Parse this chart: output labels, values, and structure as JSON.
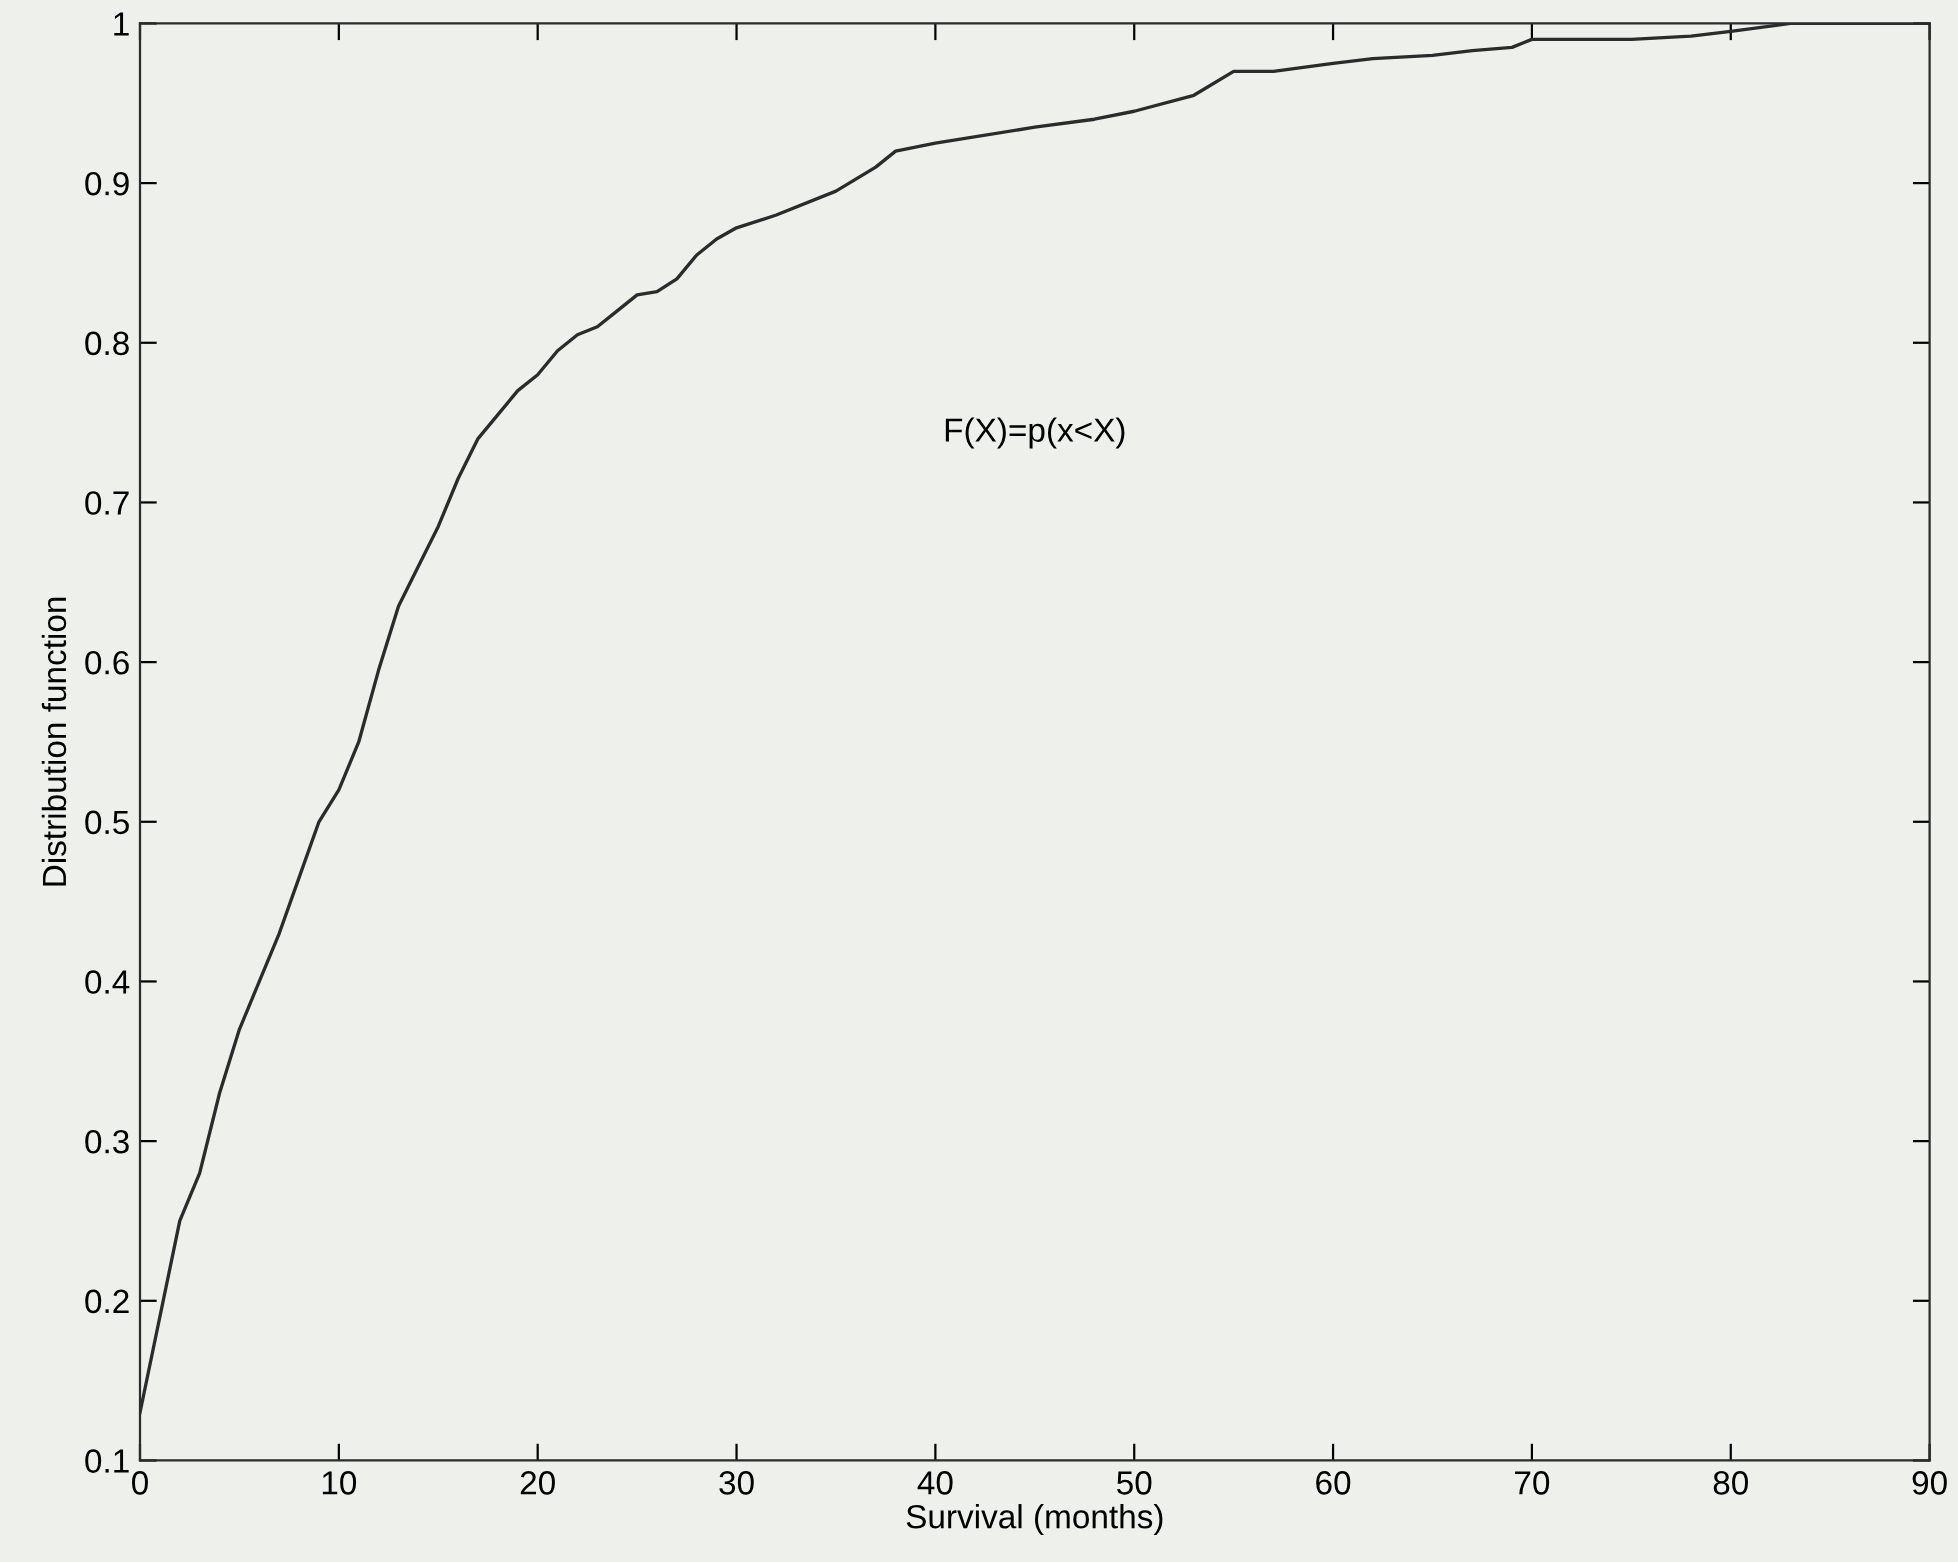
{
  "chart_data": {
    "type": "line",
    "xlabel": "Survival (months)",
    "ylabel": "Distribution function",
    "annotations": [
      "F(X)=p(x<X)"
    ],
    "series": [
      {
        "color": "#2b2b2b",
        "x": [
          0,
          1,
          2,
          3,
          4,
          5,
          6,
          7,
          8,
          9,
          10,
          11,
          12,
          13,
          14,
          15,
          16,
          17,
          18,
          19,
          20,
          21,
          22,
          23,
          24,
          25,
          26,
          27,
          28,
          29,
          30,
          32,
          35,
          37,
          38,
          40,
          45,
          48,
          50,
          53,
          55,
          57,
          60,
          62,
          65,
          67,
          69,
          70,
          75,
          78,
          80,
          83,
          90
        ],
        "values": [
          0.13,
          0.19,
          0.25,
          0.28,
          0.33,
          0.37,
          0.4,
          0.43,
          0.465,
          0.5,
          0.52,
          0.55,
          0.595,
          0.635,
          0.66,
          0.685,
          0.715,
          0.74,
          0.755,
          0.77,
          0.78,
          0.795,
          0.805,
          0.81,
          0.82,
          0.83,
          0.832,
          0.84,
          0.855,
          0.865,
          0.872,
          0.88,
          0.895,
          0.91,
          0.92,
          0.925,
          0.935,
          0.94,
          0.945,
          0.955,
          0.97,
          0.97,
          0.975,
          0.978,
          0.98,
          0.983,
          0.985,
          0.99,
          0.99,
          0.992,
          0.995,
          1,
          1
        ]
      }
    ],
    "xlim": [
      0,
      90
    ],
    "ylim": [
      0.1,
      1
    ],
    "xticks": [
      0,
      10,
      20,
      30,
      40,
      50,
      60,
      70,
      80,
      90
    ],
    "yticks": [
      0.1,
      0.2,
      0.3,
      0.4,
      0.5,
      0.6,
      0.7,
      0.8,
      0.9,
      1
    ],
    "grid": false,
    "marker": "none",
    "line_style": "solid"
  }
}
